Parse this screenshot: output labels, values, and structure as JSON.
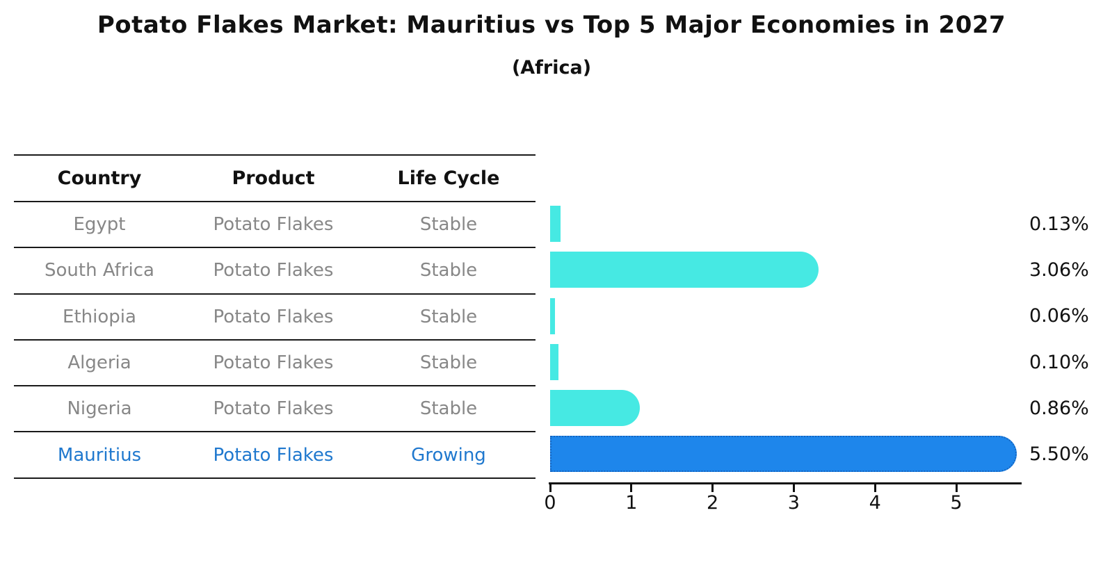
{
  "title": "Potato Flakes Market: Mauritius vs Top 5 Major Economies in 2027",
  "subtitle": "(Africa)",
  "table": {
    "headers": [
      "Country",
      "Product",
      "Life Cycle"
    ],
    "rows": [
      {
        "country": "Egypt",
        "product": "Potato Flakes",
        "life_cycle": "Stable",
        "highlight": false
      },
      {
        "country": "South Africa",
        "product": "Potato Flakes",
        "life_cycle": "Stable",
        "highlight": false
      },
      {
        "country": "Ethiopia",
        "product": "Potato Flakes",
        "life_cycle": "Stable",
        "highlight": false
      },
      {
        "country": "Algeria",
        "product": "Potato Flakes",
        "life_cycle": "Stable",
        "highlight": false
      },
      {
        "country": "Nigeria",
        "product": "Potato Flakes",
        "life_cycle": "Stable",
        "highlight": false
      },
      {
        "country": "Mauritius",
        "product": "Potato Flakes",
        "life_cycle": "Growing",
        "highlight": true
      }
    ]
  },
  "chart_data": {
    "type": "bar",
    "orientation": "horizontal",
    "title": "Potato Flakes Market: Mauritius vs Top 5 Major Economies in 2027",
    "subtitle": "(Africa)",
    "categories": [
      "Egypt",
      "South Africa",
      "Ethiopia",
      "Algeria",
      "Nigeria",
      "Mauritius"
    ],
    "values": [
      0.13,
      3.06,
      0.06,
      0.1,
      0.86,
      5.5
    ],
    "value_labels": [
      "0.13%",
      "3.06%",
      "0.06%",
      "0.10%",
      "0.86%",
      "5.50%"
    ],
    "x_ticks": [
      "0",
      "1",
      "2",
      "3",
      "4",
      "5"
    ],
    "xlim": [
      0,
      5.81
    ],
    "grid": false,
    "legend": "none",
    "highlight_index": 5,
    "bar_color": "#46E9E3",
    "highlight_bar_color": "#1E86EB",
    "highlight_border_color": "#1565C0",
    "highlight_text_color": "#1F78CE",
    "text_color": "#111111",
    "muted_text_color": "#878787"
  }
}
